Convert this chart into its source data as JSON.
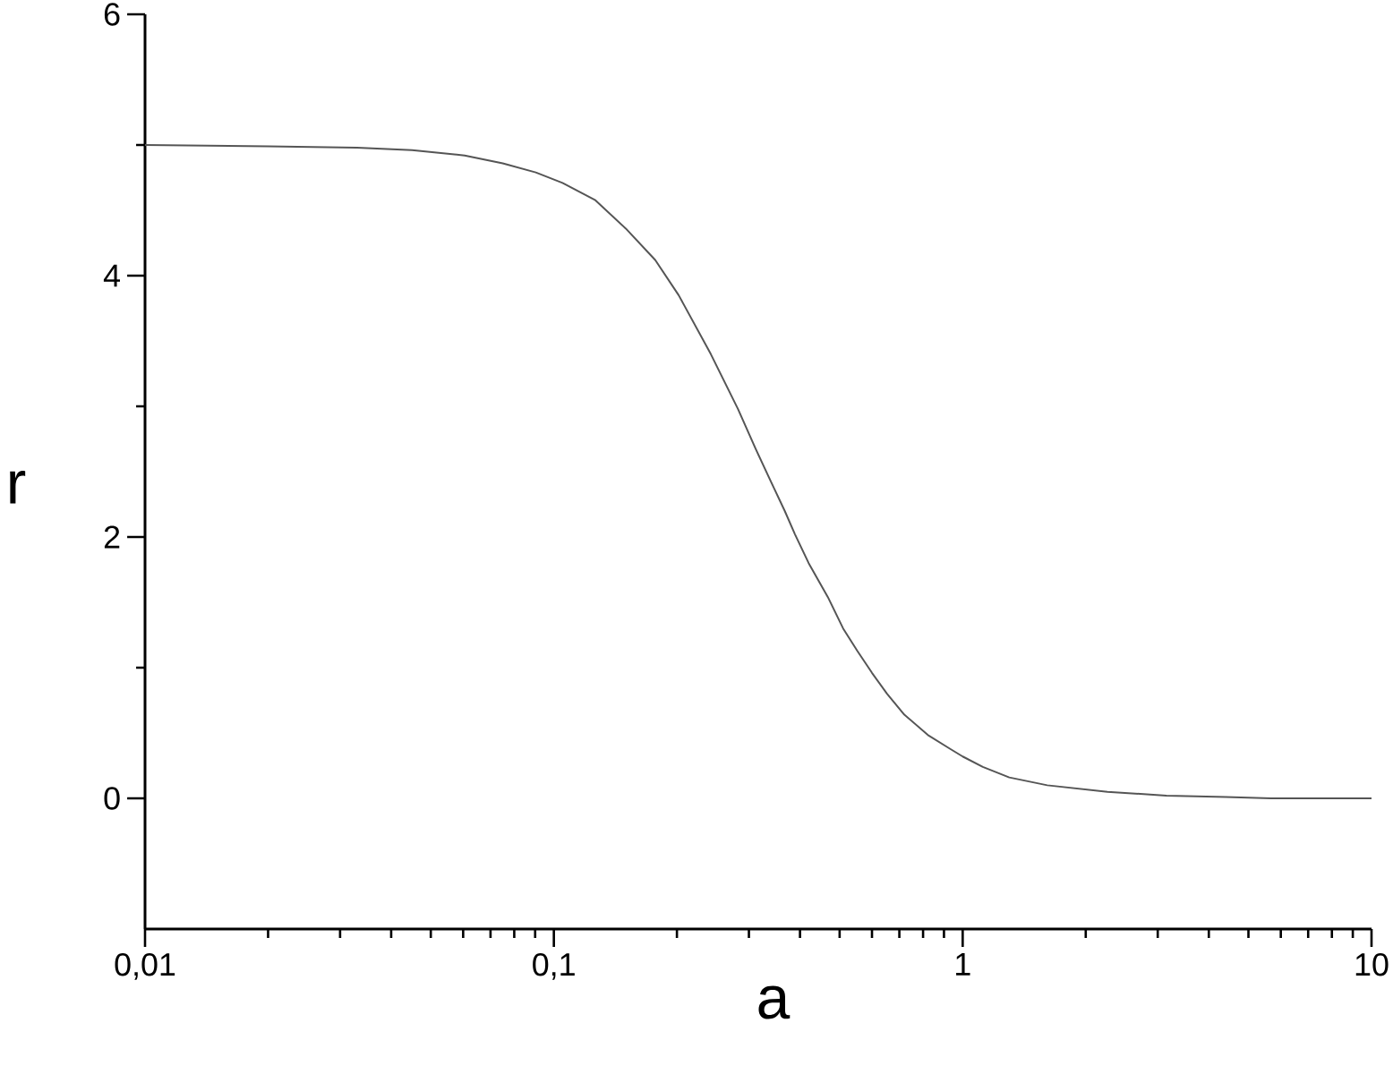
{
  "chart_data": {
    "type": "line",
    "xlabel": "a",
    "ylabel": "r",
    "x": [
      0.01,
      0.02,
      0.033,
      0.045,
      0.0605,
      0.075,
      0.0903,
      0.105,
      0.126,
      0.15,
      0.177,
      0.202,
      0.242,
      0.282,
      0.311,
      0.34,
      0.367,
      0.389,
      0.42,
      0.468,
      0.51,
      0.552,
      0.6,
      0.653,
      0.72,
      0.826,
      0.93,
      1,
      1.12,
      1.3,
      1.61,
      2.26,
      3.15,
      4.4,
      5.68,
      10
    ],
    "series": [
      {
        "color": "#555555",
        "values": [
          5.0,
          4.99,
          4.98,
          4.96,
          4.92,
          4.86,
          4.79,
          4.71,
          4.58,
          4.36,
          4.12,
          3.85,
          3.4,
          2.98,
          2.68,
          2.42,
          2.2,
          2.02,
          1.8,
          1.54,
          1.3,
          1.13,
          0.96,
          0.8,
          0.64,
          0.48,
          0.38,
          0.32,
          0.24,
          0.16,
          0.1,
          0.05,
          0.02,
          0.01,
          0,
          0
        ]
      }
    ],
    "log": "x",
    "xlim": [
      0.01,
      10
    ],
    "ylim": [
      -1,
      6
    ],
    "xticks": [
      {
        "value": 0.01,
        "label": "0,01"
      },
      {
        "value": 0.1,
        "label": "0,1"
      },
      1,
      10
    ],
    "yticks": [
      0,
      {
        "value": 1,
        "label": null
      },
      2,
      {
        "value": 3,
        "label": null
      },
      4,
      {
        "value": 5,
        "label": null
      },
      6
    ]
  }
}
